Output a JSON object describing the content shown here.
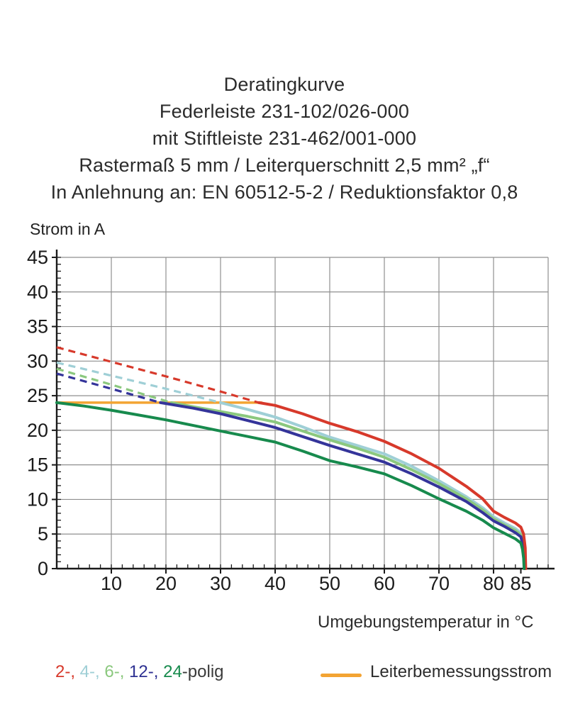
{
  "title": {
    "lines": [
      "Deratingkurve",
      "Federleiste 231-102/026-000",
      "mit Stiftleiste 231-462/001-000",
      "Rastermaß 5 mm / Leiterquerschnitt 2,5 mm² „f“",
      "In Anlehnung an: EN 60512-5-2 / Reduktionsfaktor 0,8"
    ]
  },
  "colors": {
    "pole2_red": "#d7392b",
    "pole4_cyan": "#9fcfd6",
    "pole6_lightgreen": "#8bc87e",
    "pole12_navy": "#2e3192",
    "pole24_darkgreen": "#178a4d",
    "rated_orange": "#f3a433",
    "grid": "#8f8f8f",
    "axis": "#1a1a1a",
    "text": "#2d2d2d"
  },
  "legend": {
    "poles": {
      "parts": [
        {
          "text": "2-,",
          "color": "#d7392b"
        },
        {
          "text": " 4-,",
          "color": "#9fcfd6"
        },
        {
          "text": " 6-,",
          "color": "#8bc87e"
        },
        {
          "text": " 12-,",
          "color": "#2e3192"
        },
        {
          "text": " 24",
          "color": "#178a4d"
        },
        {
          "text": "-polig",
          "color": "#3a3a3a"
        }
      ]
    },
    "rated_current": {
      "label": "Leiterbemessungsstrom",
      "color": "#f3a433"
    }
  },
  "chart_data": {
    "type": "line",
    "title": "Deratingkurve Federleiste 231-102/026-000 mit Stiftleiste 231-462/001-000",
    "xlabel": "Umgebungstemperatur in °C",
    "ylabel": "Strom in A",
    "xlim": [
      0,
      91
    ],
    "ylim": [
      0,
      45
    ],
    "grid": true,
    "x_ticks": [
      10,
      20,
      30,
      40,
      50,
      60,
      70,
      80,
      85
    ],
    "y_ticks": [
      0,
      5,
      10,
      15,
      20,
      25,
      30,
      35,
      40,
      45
    ],
    "rated_current_A": 24,
    "reduction_factor": "0,8",
    "series": [
      {
        "name": "Leiterbemessungsstrom",
        "style": "solid",
        "width": 3.5,
        "color": "#f3a433",
        "points": [
          [
            0,
            24
          ],
          [
            37.5,
            24
          ]
        ]
      },
      {
        "name": "2-polig ungekappt",
        "style": "dashed",
        "width": 3.2,
        "color": "#d7392b",
        "points": [
          [
            0,
            32
          ],
          [
            10,
            29.9
          ],
          [
            20,
            27.8
          ],
          [
            30,
            25.6
          ],
          [
            37,
            24
          ]
        ]
      },
      {
        "name": "4-polig ungekappt",
        "style": "dashed",
        "width": 3.2,
        "color": "#9fcfd6",
        "points": [
          [
            0,
            29.8
          ],
          [
            10,
            27.9
          ],
          [
            20,
            26.0
          ],
          [
            30,
            24
          ]
        ]
      },
      {
        "name": "6-polig ungekappt",
        "style": "dashed",
        "width": 3.2,
        "color": "#8bc87e",
        "points": [
          [
            0,
            28.9
          ],
          [
            10,
            26.6
          ],
          [
            21,
            24
          ]
        ]
      },
      {
        "name": "12-polig ungekappt",
        "style": "dashed",
        "width": 3.2,
        "color": "#34349a",
        "points": [
          [
            0,
            28.2
          ],
          [
            10,
            26.0
          ],
          [
            19,
            24
          ]
        ]
      },
      {
        "name": "4-polig",
        "style": "solid",
        "width": 4,
        "color": "#9fcfd6",
        "points": [
          [
            30,
            24
          ],
          [
            35,
            23.0
          ],
          [
            40,
            21.9
          ],
          [
            45,
            20.5
          ],
          [
            50,
            19.0
          ],
          [
            55,
            17.8
          ],
          [
            60,
            16.6
          ],
          [
            65,
            14.8
          ],
          [
            70,
            12.7
          ],
          [
            75,
            10.4
          ],
          [
            78,
            8.8
          ],
          [
            80,
            7.5
          ],
          [
            82,
            6.6
          ],
          [
            84,
            5.8
          ],
          [
            85,
            5.2
          ],
          [
            85.4,
            4.2
          ],
          [
            85.7,
            2.5
          ],
          [
            85.8,
            0
          ]
        ]
      },
      {
        "name": "6-polig",
        "style": "solid",
        "width": 4,
        "color": "#8bc87e",
        "points": [
          [
            21,
            24
          ],
          [
            25,
            23.4
          ],
          [
            30,
            22.7
          ],
          [
            35,
            22.0
          ],
          [
            40,
            21.2
          ],
          [
            45,
            19.9
          ],
          [
            50,
            18.6
          ],
          [
            55,
            17.4
          ],
          [
            60,
            16.1
          ],
          [
            65,
            14.3
          ],
          [
            70,
            12.3
          ],
          [
            75,
            10.1
          ],
          [
            78,
            8.5
          ],
          [
            80,
            7.2
          ],
          [
            82,
            6.3
          ],
          [
            84,
            5.5
          ],
          [
            85,
            4.9
          ],
          [
            85.4,
            3.9
          ],
          [
            85.7,
            2.2
          ],
          [
            85.8,
            0
          ]
        ]
      },
      {
        "name": "12-polig",
        "style": "solid",
        "width": 4,
        "color": "#34349a",
        "points": [
          [
            19,
            24
          ],
          [
            25,
            23.2
          ],
          [
            30,
            22.4
          ],
          [
            35,
            21.4
          ],
          [
            40,
            20.4
          ],
          [
            45,
            19.1
          ],
          [
            50,
            17.8
          ],
          [
            55,
            16.6
          ],
          [
            60,
            15.4
          ],
          [
            65,
            13.7
          ],
          [
            70,
            11.8
          ],
          [
            75,
            9.7
          ],
          [
            78,
            8.1
          ],
          [
            80,
            6.9
          ],
          [
            82,
            6.1
          ],
          [
            84,
            5.2
          ],
          [
            85,
            4.6
          ],
          [
            85.3,
            3.6
          ],
          [
            85.6,
            2.0
          ],
          [
            85.7,
            0
          ]
        ]
      },
      {
        "name": "2-polig",
        "style": "solid",
        "width": 4,
        "color": "#d7392b",
        "points": [
          [
            37,
            24
          ],
          [
            40,
            23.6
          ],
          [
            45,
            22.4
          ],
          [
            50,
            21.0
          ],
          [
            55,
            19.8
          ],
          [
            60,
            18.4
          ],
          [
            65,
            16.6
          ],
          [
            70,
            14.5
          ],
          [
            75,
            11.9
          ],
          [
            78,
            10.1
          ],
          [
            80,
            8.3
          ],
          [
            82,
            7.4
          ],
          [
            84,
            6.6
          ],
          [
            85,
            6.0
          ],
          [
            85.5,
            5.0
          ],
          [
            85.8,
            3.0
          ],
          [
            85.9,
            0
          ]
        ]
      },
      {
        "name": "24-polig",
        "style": "solid",
        "width": 4,
        "color": "#178a4d",
        "points": [
          [
            0,
            24
          ],
          [
            5,
            23.5
          ],
          [
            10,
            22.9
          ],
          [
            15,
            22.2
          ],
          [
            20,
            21.5
          ],
          [
            25,
            20.7
          ],
          [
            30,
            19.9
          ],
          [
            35,
            19.1
          ],
          [
            40,
            18.3
          ],
          [
            45,
            17.0
          ],
          [
            50,
            15.6
          ],
          [
            55,
            14.7
          ],
          [
            60,
            13.7
          ],
          [
            65,
            12.0
          ],
          [
            70,
            10.1
          ],
          [
            75,
            8.3
          ],
          [
            78,
            7.0
          ],
          [
            80,
            5.9
          ],
          [
            82,
            5.1
          ],
          [
            84,
            4.3
          ],
          [
            85,
            3.7
          ],
          [
            85.3,
            2.8
          ],
          [
            85.5,
            1.5
          ],
          [
            85.6,
            0
          ]
        ]
      }
    ]
  }
}
